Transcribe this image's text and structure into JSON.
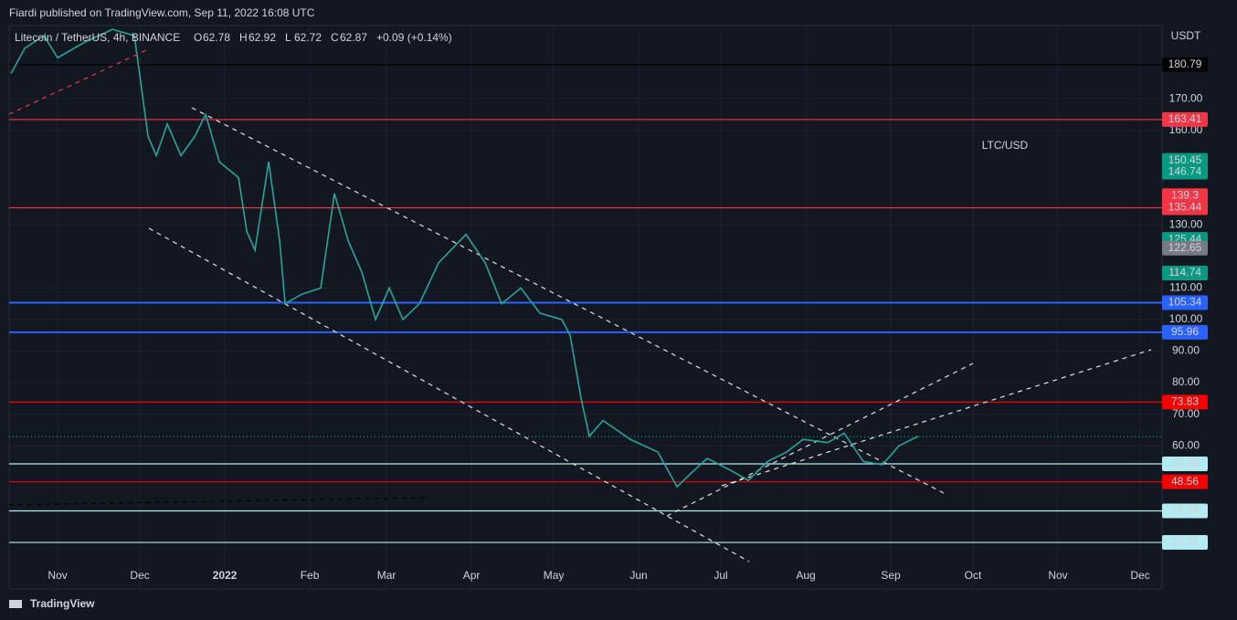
{
  "header": {
    "publisher": "Fiardi published on TradingView.com, Sep 11, 2022 16:08 UTC",
    "footer": "TradingView"
  },
  "chart_data": {
    "type": "line",
    "title": "Litecoin / TetherUS, 4h, BINANCE",
    "ohlc": [
      {
        "key": "O",
        "value": 62.78
      },
      {
        "key": "H",
        "value": 62.92
      },
      {
        "key": "L",
        "value": 62.72
      },
      {
        "key": "C",
        "value": 62.87
      }
    ],
    "change": "+0.09 (+0.14%)",
    "annotation": "LTC/USD",
    "y_axis_label": "USDT",
    "x": [
      -17,
      -12,
      -5,
      0,
      10,
      20,
      28,
      33,
      36,
      40,
      45,
      50,
      54,
      59,
      66,
      69,
      72,
      77,
      81,
      83,
      89,
      96,
      101,
      106,
      111,
      116,
      121,
      126,
      132,
      139,
      149,
      156,
      162,
      169,
      176,
      184,
      187,
      191,
      194,
      199,
      209,
      219,
      226,
      232,
      237,
      246,
      252,
      259,
      266,
      272,
      281,
      287,
      294,
      301,
      307,
      314
    ],
    "series": [
      {
        "color": "#26a69a",
        "values": [
          178,
          186,
          190,
          183,
          188,
          192,
          190,
          158,
          152,
          162,
          152,
          158,
          165,
          150,
          145,
          128,
          122,
          150,
          125,
          105,
          108,
          110,
          140,
          125,
          115,
          100,
          110,
          100,
          105,
          118,
          127,
          118,
          105,
          110,
          102,
          100,
          95,
          75,
          63,
          68,
          62,
          58,
          47,
          52,
          56,
          52,
          49,
          55,
          58,
          62,
          61,
          64,
          55,
          54,
          60,
          63
        ]
      }
    ],
    "xlim": [
      -17.7,
      403
    ],
    "xticks": [
      {
        "value": 0,
        "label": "Nov"
      },
      {
        "value": 30,
        "label": "Dec"
      },
      {
        "value": 61,
        "label": "2022"
      },
      {
        "value": 92,
        "label": "Feb"
      },
      {
        "value": 120,
        "label": "Mar"
      },
      {
        "value": 151,
        "label": "Apr"
      },
      {
        "value": 181,
        "label": "May"
      },
      {
        "value": 212,
        "label": "Jun"
      },
      {
        "value": 242,
        "label": "Jul"
      },
      {
        "value": 273,
        "label": "Aug"
      },
      {
        "value": 304,
        "label": "Sep"
      },
      {
        "value": 334,
        "label": "Oct"
      },
      {
        "value": 365,
        "label": "Nov"
      },
      {
        "value": 395,
        "label": "Dec"
      }
    ],
    "ylim": [
      14.6,
      193.2
    ],
    "yticks": [
      {
        "value": 60,
        "label": "60.00"
      },
      {
        "value": 70,
        "label": "70.00"
      },
      {
        "value": 80,
        "label": "80.00"
      },
      {
        "value": 90,
        "label": "90.00"
      },
      {
        "value": 100,
        "label": "100.00"
      },
      {
        "value": 110,
        "label": "110.00"
      },
      {
        "value": 130,
        "label": "130.00"
      },
      {
        "value": 160,
        "label": "160.00"
      },
      {
        "value": 170,
        "label": "170.00"
      }
    ],
    "grid": true,
    "current_price": 62.87,
    "levels": [
      {
        "value": 180.79,
        "color": "#000000"
      },
      {
        "value": 163.41,
        "color": "#f23645"
      },
      {
        "value": 135.44,
        "color": "#f23645"
      },
      {
        "value": 105.34,
        "color": "#2962ff"
      },
      {
        "value": 95.96,
        "color": "#2962ff"
      },
      {
        "value": 73.83,
        "color": "#f70000"
      },
      {
        "value": 54.26,
        "color": "#b2ebf2"
      },
      {
        "value": 48.56,
        "color": "#f70000"
      },
      {
        "value": 39.34,
        "color": "#b2ebf2"
      },
      {
        "value": 29.35,
        "color": "#b2ebf2"
      }
    ],
    "price_labels": [
      {
        "value": 150.45,
        "color": "#089981"
      },
      {
        "value": 146.74,
        "color": "#089981"
      },
      {
        "value": 139.3,
        "color": "#f23645"
      },
      {
        "value": 125.44,
        "color": "#089981"
      },
      {
        "value": 122.65,
        "color": "#787b86"
      },
      {
        "value": 114.74,
        "color": "#089981"
      }
    ]
  }
}
